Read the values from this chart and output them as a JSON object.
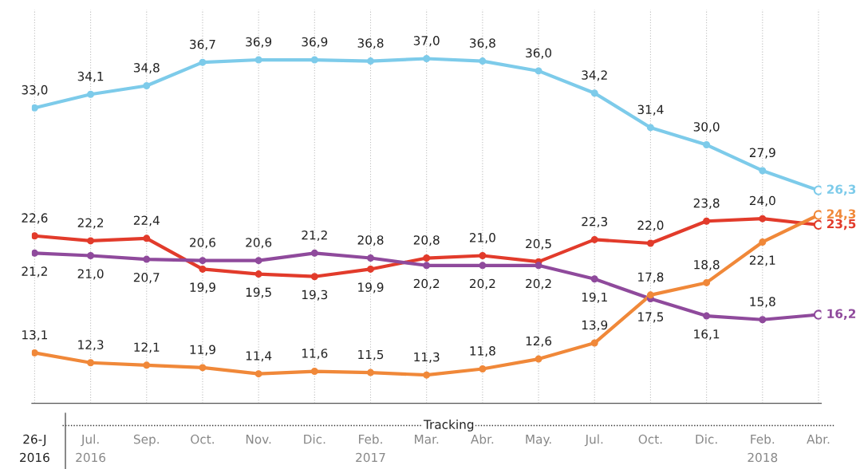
{
  "chart_data": {
    "type": "line",
    "categories": [
      "26-J\n2016",
      "Jul.\n2016",
      "Sep.",
      "Oct.",
      "Nov.",
      "Dic.",
      "Feb.\n2017",
      "Mar.",
      "Abr.",
      "May.",
      "Jul.",
      "Oct.",
      "Dic.",
      "Feb.\n2018",
      "Abr."
    ],
    "series": [
      {
        "color": "#7dcbea",
        "values": [
          33.0,
          34.1,
          34.8,
          36.7,
          36.9,
          36.9,
          36.8,
          37.0,
          36.8,
          36.0,
          34.2,
          31.4,
          30.0,
          27.9,
          26.3
        ],
        "value_labels": [
          "33,0",
          "34,1",
          "34,8",
          "36,7",
          "36,9",
          "36,9",
          "36,8",
          "37,0",
          "36,8",
          "36,0",
          "34,2",
          "31,4",
          "30,0",
          "27,9",
          "26,3"
        ]
      },
      {
        "color": "#e23b2b",
        "values": [
          22.6,
          22.2,
          22.4,
          19.9,
          19.5,
          19.3,
          19.9,
          20.8,
          21.0,
          20.5,
          22.3,
          22.0,
          23.8,
          24.0,
          23.5
        ],
        "value_labels": [
          "22,6",
          "22,2",
          "22,4",
          "19,9",
          "19,5",
          "19,3",
          "19,9",
          "20,8",
          "21,0",
          "20,5",
          "22,3",
          "22,0",
          "23,8",
          "24,0",
          "23,5"
        ]
      },
      {
        "color": "#8f4a9c",
        "values": [
          21.2,
          21.0,
          20.7,
          20.6,
          20.6,
          21.2,
          20.8,
          20.2,
          20.2,
          20.2,
          19.1,
          17.5,
          16.1,
          15.8,
          16.2
        ],
        "value_labels": [
          "21,2",
          "21,0",
          "20,7",
          "20,6",
          "20,6",
          "21,2",
          "20,8",
          "20,2",
          "20,2",
          "20,2",
          "19,1",
          "17,5",
          "16,1",
          "15,8",
          "16,2"
        ]
      },
      {
        "color": "#f08839",
        "values": [
          13.1,
          12.3,
          12.1,
          11.9,
          11.4,
          11.6,
          11.5,
          11.3,
          11.8,
          12.6,
          13.9,
          17.8,
          18.8,
          22.1,
          24.3
        ],
        "value_labels": [
          "13,1",
          "12,3",
          "12,1",
          "11,9",
          "11,4",
          "11,6",
          "11,5",
          "11,3",
          "11,8",
          "12,6",
          "13,9",
          "17,8",
          "18,8",
          "22,1",
          "24,3"
        ]
      }
    ],
    "annotations": [
      "Tracking"
    ],
    "marker": "circle",
    "grid": "x",
    "legend": false
  }
}
